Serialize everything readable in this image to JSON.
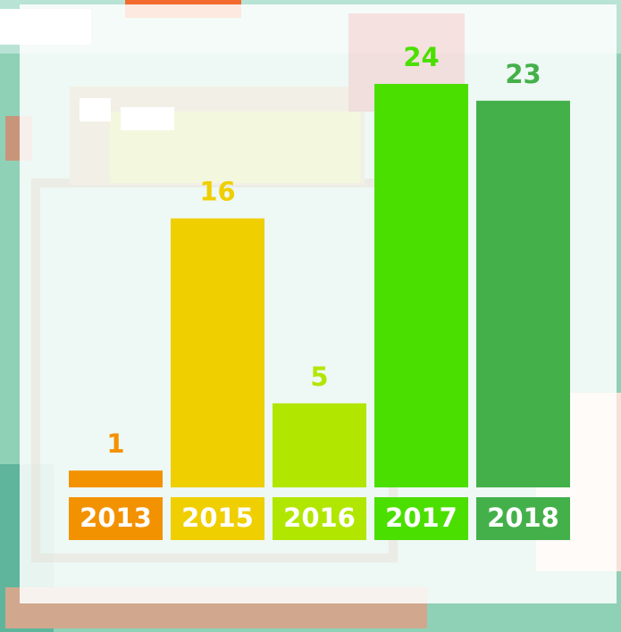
{
  "chart_data": {
    "type": "bar",
    "categories": [
      "2013",
      "2015",
      "2016",
      "2017",
      "2018"
    ],
    "values": [
      1,
      16,
      5,
      24,
      23
    ],
    "colors": [
      "#f39200",
      "#efcf00",
      "#b1e600",
      "#4bdf00",
      "#44b04a"
    ]
  }
}
